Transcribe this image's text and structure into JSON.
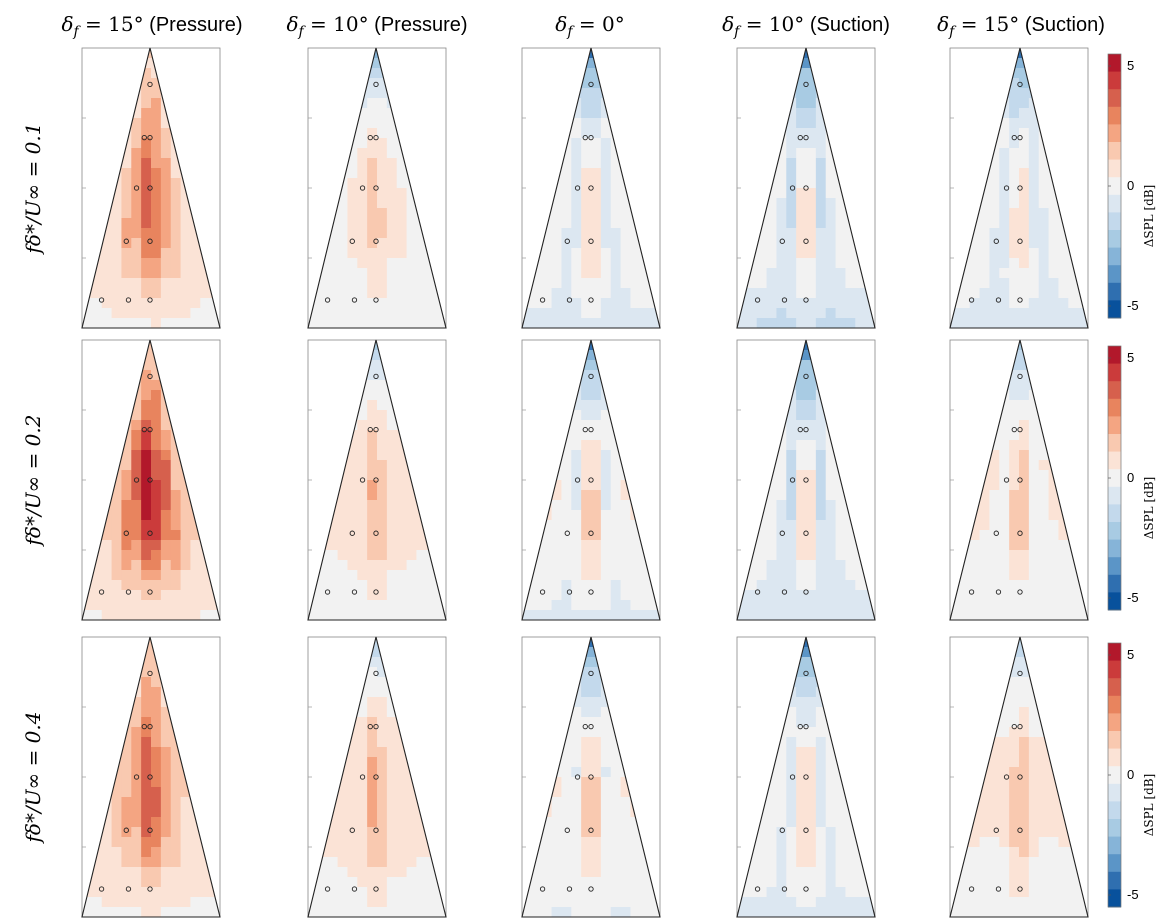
{
  "chart_data": {
    "type": "heatmap",
    "columns": [
      {
        "symbol": "δ",
        "subscript": "f",
        "value_text": " = 15°",
        "suffix": " (Pressure)"
      },
      {
        "symbol": "δ",
        "subscript": "f",
        "value_text": " = 10°",
        "suffix": " (Pressure)"
      },
      {
        "symbol": "δ",
        "subscript": "f",
        "value_text": " = 0°",
        "suffix": ""
      },
      {
        "symbol": "δ",
        "subscript": "f",
        "value_text": " = 10°",
        "suffix": " (Suction)"
      },
      {
        "symbol": "δ",
        "subscript": "f",
        "value_text": " = 15°",
        "suffix": " (Suction)"
      }
    ],
    "rows": [
      {
        "label": "fδ*/U∞ = 0.1"
      },
      {
        "label": "fδ*/U∞ = 0.2"
      },
      {
        "label": "fδ*/U∞ = 0.4"
      }
    ],
    "colorbar": {
      "label": "ΔSPL [dB]",
      "ticks": [
        "5",
        "0",
        "-5"
      ],
      "range": [
        -5.5,
        5.5
      ],
      "levels": [
        "#b2182b",
        "#cb3b3b",
        "#d6604d",
        "#e8845e",
        "#f4a582",
        "#f9c9b0",
        "#fbe3d6",
        "#f2f2f2",
        "#dce7f1",
        "#c3d9ec",
        "#a8cbe3",
        "#86b4d8",
        "#5b95c7",
        "#2f6fb0",
        "#08519c"
      ]
    },
    "sensor_layout": {
      "description": "sensor locations as (spanwise from apex, chordwise from apex) in wedge fractions",
      "points": [
        [
          0,
          0.13
        ],
        [
          -0.12,
          0.32
        ],
        [
          0,
          0.32
        ],
        [
          -0.18,
          0.5
        ],
        [
          0,
          0.5
        ],
        [
          -0.23,
          0.69
        ],
        [
          0,
          0.69
        ],
        [
          -0.36,
          0.9
        ],
        [
          -0.16,
          0.9
        ],
        [
          0,
          0.9
        ]
      ]
    },
    "panels": [
      [
        {
          "peak_center": 3.0,
          "peak_edge": 2.6,
          "apex": 1.2,
          "base": 0.2
        },
        {
          "peak_center": 1.2,
          "peak_edge": 0.6,
          "apex": -3.5,
          "base": 0.0
        },
        {
          "peak_center": 1.0,
          "peak_edge": -0.8,
          "apex": -5.0,
          "base": -0.6
        },
        {
          "peak_center": 0.8,
          "peak_edge": -1.6,
          "apex": -5.5,
          "base": -1.2
        },
        {
          "peak_center": 0.7,
          "peak_edge": -0.8,
          "apex": -5.0,
          "base": -0.7
        }
      ],
      [
        {
          "peak_center": 4.2,
          "peak_edge": 3.8,
          "apex": 1.3,
          "base": 0.3
        },
        {
          "peak_center": 1.6,
          "peak_edge": 0.8,
          "apex": -2.2,
          "base": 0.1
        },
        {
          "peak_center": 1.3,
          "peak_edge": -0.5,
          "apex": -5.0,
          "base": -0.5
        },
        {
          "peak_center": 0.9,
          "peak_edge": -1.5,
          "apex": -5.5,
          "base": -1.0
        },
        {
          "peak_center": 1.4,
          "peak_edge": 0.1,
          "apex": -3.0,
          "base": -0.4
        }
      ],
      [
        {
          "peak_center": 3.3,
          "peak_edge": 2.6,
          "apex": 1.5,
          "base": 0.2
        },
        {
          "peak_center": 1.8,
          "peak_edge": 0.9,
          "apex": -2.0,
          "base": 0.1
        },
        {
          "peak_center": 1.3,
          "peak_edge": -0.3,
          "apex": -5.0,
          "base": -0.4
        },
        {
          "peak_center": 1.0,
          "peak_edge": -0.6,
          "apex": -5.5,
          "base": -0.6
        },
        {
          "peak_center": 1.5,
          "peak_edge": 0.5,
          "apex": -2.0,
          "base": 0.0
        }
      ]
    ]
  }
}
